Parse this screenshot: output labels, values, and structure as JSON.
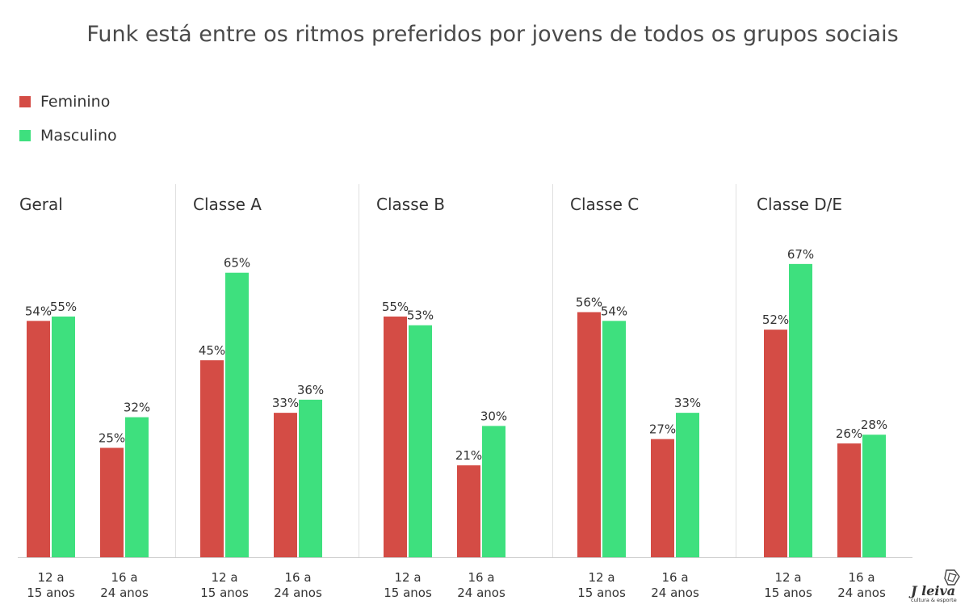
{
  "chart_data": {
    "type": "bar",
    "title": "Funk está entre os ritmos preferidos por jovens de todos os grupos sociais",
    "series": [
      {
        "name": "Feminino",
        "color": "#d44c45"
      },
      {
        "name": "Masculino",
        "color": "#3ee07e"
      }
    ],
    "categories": [
      [
        "12 a",
        "15 anos"
      ],
      [
        "16 a",
        "24 anos"
      ]
    ],
    "value_suffix": "%",
    "ylim": [
      0,
      100
    ],
    "grid": false,
    "legend_position": "top-left",
    "panels": [
      {
        "label": "Geral",
        "groups": [
          {
            "values": [
              54,
              55
            ]
          },
          {
            "values": [
              25,
              32
            ]
          }
        ]
      },
      {
        "label": "Classe A",
        "groups": [
          {
            "values": [
              45,
              65
            ]
          },
          {
            "values": [
              33,
              36
            ]
          }
        ]
      },
      {
        "label": "Classe B",
        "groups": [
          {
            "values": [
              55,
              53
            ]
          },
          {
            "values": [
              21,
              30
            ]
          }
        ]
      },
      {
        "label": "Classe C",
        "groups": [
          {
            "values": [
              56,
              54
            ]
          },
          {
            "values": [
              27,
              33
            ]
          }
        ]
      },
      {
        "label": "Classe D/E",
        "groups": [
          {
            "values": [
              52,
              67
            ]
          },
          {
            "values": [
              26,
              28
            ]
          }
        ]
      }
    ]
  },
  "logo": {
    "word": "J leiva",
    "tagline": "cultura & esporte",
    "icon": "leiva-logo-icon"
  }
}
